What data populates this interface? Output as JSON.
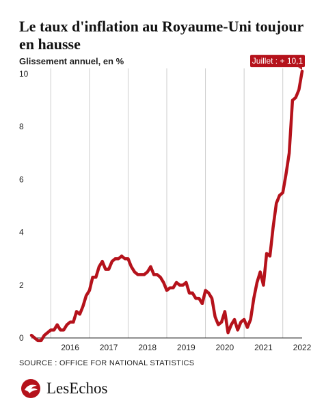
{
  "header": {
    "title": "Le taux d'inflation au Royaume-Uni toujour en hausse",
    "subtitle": "Glissement annuel, en %"
  },
  "footer": {
    "source": "SOURCE : OFFICE FOR NATIONAL STATISTICS",
    "brand": "LesEchos"
  },
  "icons": {
    "brand": "les-echos-logo-icon"
  },
  "colors": {
    "line": "#b5121b",
    "callout": "#b5121b",
    "grid": "#cccccc",
    "axis": "#222222"
  },
  "chart_data": {
    "type": "line",
    "title": "Le taux d'inflation au Royaume-Uni toujour en hausse",
    "subtitle": "Glissement annuel, en %",
    "xlabel": "",
    "ylabel": "",
    "ylim": [
      0,
      10
    ],
    "xlim": [
      "2015-07",
      "2022-07"
    ],
    "yticks": [
      0,
      2,
      4,
      6,
      8,
      10
    ],
    "xticks": [
      "2016",
      "2017",
      "2018",
      "2019",
      "2020",
      "2021",
      "2022"
    ],
    "grid": "vertical at year marks",
    "annotation": {
      "x": "2022-07",
      "y": 10.1,
      "text": "Juillet : + 10,1"
    },
    "series": [
      {
        "x": [
          "2015-07",
          "2015-08",
          "2015-09",
          "2015-10",
          "2015-11",
          "2015-12",
          "2016-01",
          "2016-02",
          "2016-03",
          "2016-04",
          "2016-05",
          "2016-06",
          "2016-07",
          "2016-08",
          "2016-09",
          "2016-10",
          "2016-11",
          "2016-12",
          "2017-01",
          "2017-02",
          "2017-03",
          "2017-04",
          "2017-05",
          "2017-06",
          "2017-07",
          "2017-08",
          "2017-09",
          "2017-10",
          "2017-11",
          "2017-12",
          "2018-01",
          "2018-02",
          "2018-03",
          "2018-04",
          "2018-05",
          "2018-06",
          "2018-07",
          "2018-08",
          "2018-09",
          "2018-10",
          "2018-11",
          "2018-12",
          "2019-01",
          "2019-02",
          "2019-03",
          "2019-04",
          "2019-05",
          "2019-06",
          "2019-07",
          "2019-08",
          "2019-09",
          "2019-10",
          "2019-11",
          "2019-12",
          "2020-01",
          "2020-02",
          "2020-03",
          "2020-04",
          "2020-05",
          "2020-06",
          "2020-07",
          "2020-08",
          "2020-09",
          "2020-10",
          "2020-11",
          "2020-12",
          "2021-01",
          "2021-02",
          "2021-03",
          "2021-04",
          "2021-05",
          "2021-06",
          "2021-07",
          "2021-08",
          "2021-09",
          "2021-10",
          "2021-11",
          "2021-12",
          "2022-01",
          "2022-02",
          "2022-03",
          "2022-04",
          "2022-05",
          "2022-06",
          "2022-07"
        ],
        "values": [
          0.1,
          0.0,
          -0.1,
          -0.1,
          0.1,
          0.2,
          0.3,
          0.3,
          0.5,
          0.3,
          0.3,
          0.5,
          0.6,
          0.6,
          1.0,
          0.9,
          1.2,
          1.6,
          1.8,
          2.3,
          2.3,
          2.7,
          2.9,
          2.6,
          2.6,
          2.9,
          3.0,
          3.0,
          3.1,
          3.0,
          3.0,
          2.7,
          2.5,
          2.4,
          2.4,
          2.4,
          2.5,
          2.7,
          2.4,
          2.4,
          2.3,
          2.1,
          1.8,
          1.9,
          1.9,
          2.1,
          2.0,
          2.0,
          2.1,
          1.7,
          1.7,
          1.5,
          1.5,
          1.3,
          1.8,
          1.7,
          1.5,
          0.8,
          0.5,
          0.6,
          1.0,
          0.2,
          0.5,
          0.7,
          0.3,
          0.6,
          0.7,
          0.4,
          0.7,
          1.5,
          2.1,
          2.5,
          2.0,
          3.2,
          3.1,
          4.2,
          5.1,
          5.4,
          5.5,
          6.2,
          7.0,
          9.0,
          9.1,
          9.4,
          10.1
        ]
      }
    ]
  }
}
